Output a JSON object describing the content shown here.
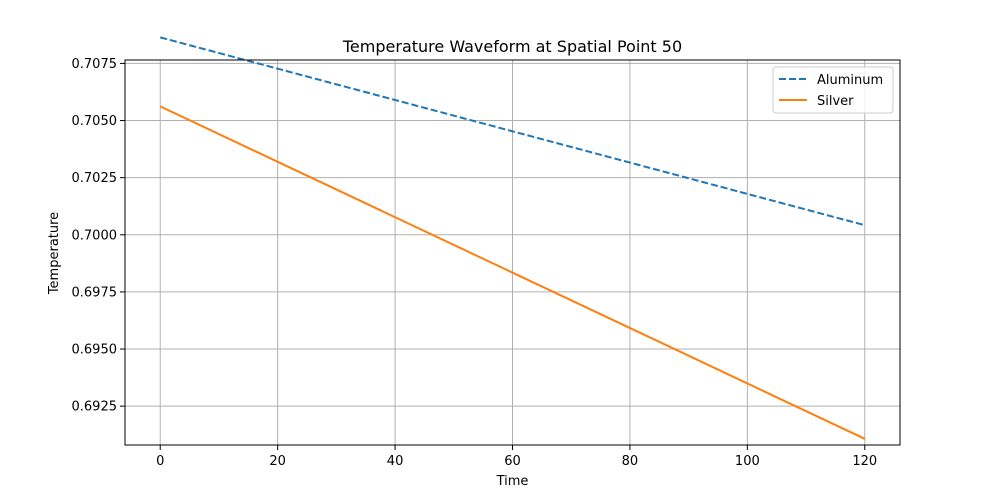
{
  "chart_data": {
    "type": "line",
    "title": "Temperature Waveform at Spatial Point 50",
    "xlabel": "Time",
    "ylabel": "Temperature",
    "xlim": [
      -6,
      126
    ],
    "ylim": [
      0.6908,
      0.70765
    ],
    "xticks": [
      0,
      20,
      40,
      60,
      80,
      100,
      120
    ],
    "xtick_labels": [
      "0",
      "20",
      "40",
      "60",
      "80",
      "100",
      "120"
    ],
    "yticks": [
      0.6925,
      0.695,
      0.6975,
      0.7,
      0.7025,
      0.705,
      0.7075
    ],
    "ytick_labels": [
      "0.6925",
      "0.6950",
      "0.6975",
      "0.7000",
      "0.7025",
      "0.7050",
      "0.7075"
    ],
    "grid": true,
    "legend_position": "top-right",
    "series": [
      {
        "name": "Aluminum",
        "color": "#1f77b4",
        "dash": "dashed",
        "x": [
          0,
          120
        ],
        "y": [
          0.70864,
          0.70042
        ]
      },
      {
        "name": "Silver",
        "color": "#ff7f0e",
        "dash": "solid",
        "x": [
          0,
          120
        ],
        "y": [
          0.70562,
          0.69107
        ]
      }
    ]
  }
}
